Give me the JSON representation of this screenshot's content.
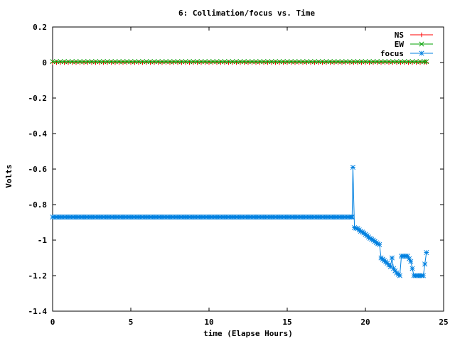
{
  "chart_data": {
    "type": "line",
    "title": "6: Collimation/focus vs. Time",
    "xlabel": "time (Elapse Hours)",
    "ylabel": "Volts",
    "xlim": [
      0,
      25
    ],
    "ylim": [
      -1.4,
      0.2
    ],
    "xticks": [
      "0",
      "5",
      "10",
      "15",
      "20",
      "25"
    ],
    "yticks": [
      "0.2",
      "0",
      "-0.2",
      "-0.4",
      "-0.6",
      "-0.8",
      "-1",
      "-1.2",
      "-1.4"
    ],
    "grid": false,
    "legend_position": "top-right",
    "series": [
      {
        "name": "NS",
        "color": "#ff0000",
        "marker": "plus",
        "points": [
          [
            0,
            0.0
          ],
          [
            23.9,
            0.0
          ]
        ],
        "sample_step": 0.25
      },
      {
        "name": "EW",
        "color": "#00a000",
        "marker": "cross",
        "points": [
          [
            0,
            0.005
          ],
          [
            23.9,
            0.005
          ]
        ],
        "sample_step": 0.25
      },
      {
        "name": "focus",
        "color": "#0080e0",
        "marker": "star",
        "points": [
          [
            0,
            -0.87
          ],
          [
            19.15,
            -0.87
          ],
          [
            19.2,
            -0.59
          ],
          [
            19.3,
            -0.93
          ],
          [
            19.5,
            -0.935
          ],
          [
            19.7,
            -0.95
          ],
          [
            19.9,
            -0.96
          ],
          [
            20.1,
            -0.975
          ],
          [
            20.3,
            -0.99
          ],
          [
            20.5,
            -1.0
          ],
          [
            20.7,
            -1.015
          ],
          [
            20.9,
            -1.025
          ],
          [
            21.0,
            -1.1
          ],
          [
            21.2,
            -1.115
          ],
          [
            21.4,
            -1.13
          ],
          [
            21.6,
            -1.15
          ],
          [
            21.7,
            -1.1
          ],
          [
            21.8,
            -1.16
          ],
          [
            22.0,
            -1.185
          ],
          [
            22.2,
            -1.2
          ],
          [
            22.3,
            -1.09
          ],
          [
            22.5,
            -1.09
          ],
          [
            22.7,
            -1.09
          ],
          [
            22.9,
            -1.12
          ],
          [
            23.1,
            -1.2
          ],
          [
            23.3,
            -1.2
          ],
          [
            23.5,
            -1.2
          ],
          [
            23.7,
            -1.2
          ],
          [
            23.9,
            -1.07
          ]
        ],
        "sample_step": 0.1
      }
    ]
  }
}
